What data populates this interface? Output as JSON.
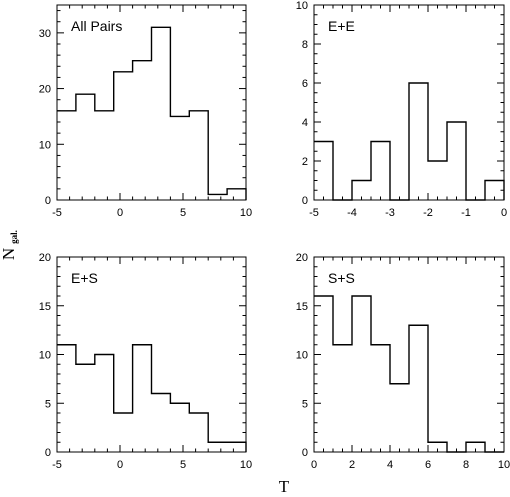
{
  "figure": {
    "xlabel": "T",
    "ylabel_main": "N",
    "ylabel_sub": "gal."
  },
  "chart_data": [
    {
      "type": "bar",
      "label": "All Pairs",
      "xlim": [
        -5,
        10
      ],
      "ylim": [
        0,
        35
      ],
      "xticks": [
        -5,
        0,
        5,
        10
      ],
      "yticks": [
        0,
        10,
        20,
        30
      ],
      "minor_x_step": 1,
      "minor_y_step": 2,
      "bin_edges": [
        -5,
        -3.5,
        -2,
        -0.5,
        1,
        2.5,
        4,
        5.5,
        7,
        8.5,
        10
      ],
      "values": [
        16,
        19,
        16,
        23,
        25,
        31,
        15,
        16,
        1,
        2
      ]
    },
    {
      "type": "bar",
      "label": "E+E",
      "xlim": [
        -5,
        0
      ],
      "ylim": [
        0,
        10
      ],
      "xticks": [
        -5,
        -4,
        -3,
        -2,
        -1,
        0
      ],
      "yticks": [
        0,
        2,
        4,
        6,
        8,
        10
      ],
      "minor_x_step": 0.25,
      "minor_y_step": 0.5,
      "bin_edges": [
        -5,
        -4.5,
        -4,
        -3.5,
        -3,
        -2.5,
        -2,
        -1.5,
        -1,
        -0.5,
        0
      ],
      "values": [
        3,
        0,
        1,
        3,
        0,
        6,
        2,
        4,
        0,
        1
      ]
    },
    {
      "type": "bar",
      "label": "E+S",
      "xlim": [
        -5,
        10
      ],
      "ylim": [
        0,
        20
      ],
      "xticks": [
        -5,
        0,
        5,
        10
      ],
      "yticks": [
        0,
        5,
        10,
        15,
        20
      ],
      "minor_x_step": 1,
      "minor_y_step": 1,
      "bin_edges": [
        -5,
        -3.5,
        -2,
        -0.5,
        1,
        2.5,
        4,
        5.5,
        7,
        8.5,
        10
      ],
      "values": [
        11,
        9,
        10,
        4,
        11,
        6,
        5,
        4,
        1,
        1
      ]
    },
    {
      "type": "bar",
      "label": "S+S",
      "xlim": [
        0,
        10
      ],
      "ylim": [
        0,
        20
      ],
      "xticks": [
        0,
        2,
        4,
        6,
        8,
        10
      ],
      "yticks": [
        0,
        5,
        10,
        15,
        20
      ],
      "minor_x_step": 0.5,
      "minor_y_step": 1,
      "bin_edges": [
        0,
        1,
        2,
        3,
        4,
        5,
        6,
        7,
        8,
        9,
        10
      ],
      "values": [
        16,
        11,
        16,
        11,
        7,
        13,
        1,
        0,
        1,
        0
      ]
    }
  ]
}
